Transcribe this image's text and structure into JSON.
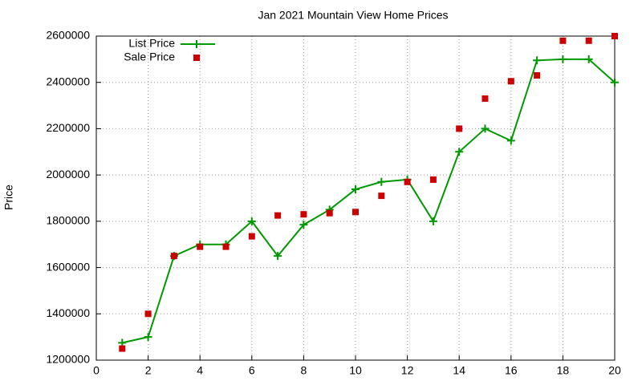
{
  "chart_data": {
    "type": "line",
    "title": "Jan 2021 Mountain View Home Prices",
    "y_label": "Price",
    "x": [
      1,
      2,
      3,
      4,
      5,
      6,
      7,
      8,
      9,
      10,
      11,
      12,
      13,
      14,
      15,
      16,
      17,
      18,
      19,
      20
    ],
    "series": [
      {
        "name": "List Price",
        "color": "#009900",
        "mode": "lines+markers",
        "marker": "plus",
        "values": [
          1275000,
          1300000,
          1650000,
          1700000,
          1700000,
          1800000,
          1650000,
          1785000,
          1850000,
          1938000,
          1970000,
          1980000,
          1800000,
          2100000,
          2200000,
          2148000,
          2495000,
          2500000,
          2500000,
          2400000
        ]
      },
      {
        "name": "Sale Price",
        "color": "#cc0000",
        "mode": "markers",
        "marker": "square",
        "values": [
          1250000,
          1400000,
          1650000,
          1690000,
          1690000,
          1735000,
          1825000,
          1830000,
          1835000,
          1840000,
          1910000,
          1970000,
          1980000,
          2200000,
          2330000,
          2405000,
          2430000,
          2580000,
          2580000,
          2600000
        ]
      }
    ],
    "xlim": [
      0,
      20
    ],
    "xticks": [
      0,
      2,
      4,
      6,
      8,
      10,
      12,
      14,
      16,
      18,
      20
    ],
    "ylim": [
      1200000,
      2600000
    ],
    "yticks": [
      1200000,
      1400000,
      1600000,
      1800000,
      2000000,
      2200000,
      2400000,
      2600000
    ],
    "grid": true,
    "legend_position": "top-left"
  }
}
